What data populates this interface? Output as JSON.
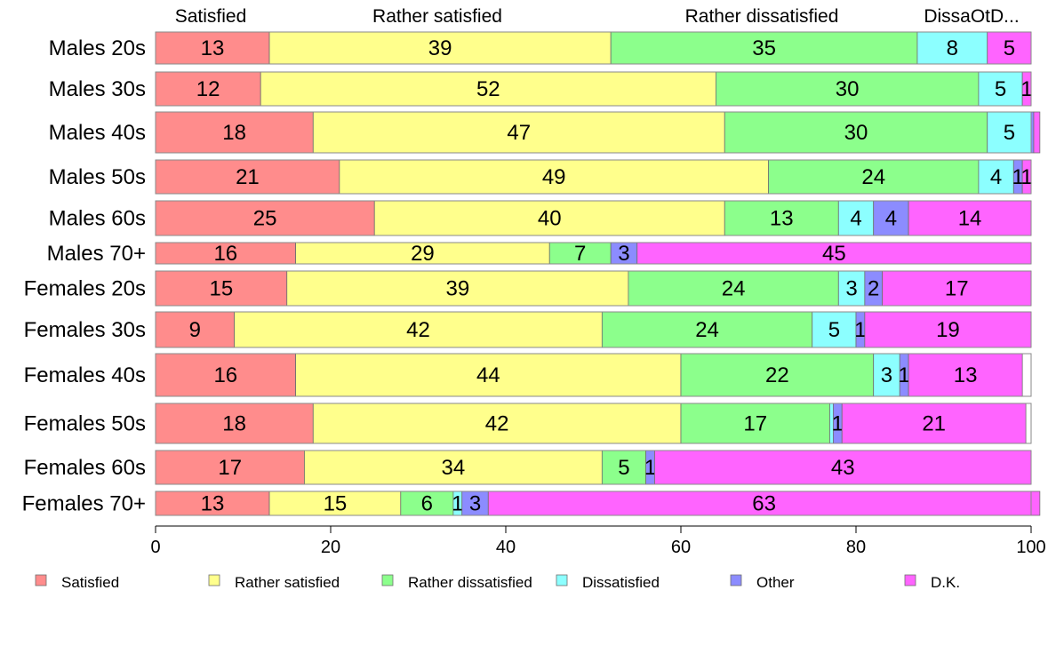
{
  "chart_data": {
    "type": "bar",
    "orientation": "horizontal",
    "stacked": true,
    "categories": [
      "Males 20s",
      "Males 30s",
      "Males 40s",
      "Males 50s",
      "Males 60s",
      "Males 70+",
      "Females 20s",
      "Females 30s",
      "Females 40s",
      "Females 50s",
      "Females 60s",
      "Females 70+"
    ],
    "series": [
      {
        "name": "Satisfied",
        "color": "#ff8c8c",
        "values": [
          13,
          12,
          18,
          21,
          25,
          16,
          15,
          9,
          16,
          18,
          17,
          13
        ]
      },
      {
        "name": "Rather satisfied",
        "color": "#ffff8c",
        "values": [
          39,
          52,
          47,
          49,
          40,
          29,
          39,
          42,
          44,
          42,
          34,
          15
        ]
      },
      {
        "name": "Rather dissatisfied",
        "color": "#8cff8c",
        "values": [
          35,
          30,
          30,
          24,
          13,
          7,
          24,
          24,
          22,
          17,
          5,
          6
        ]
      },
      {
        "name": "Dissatisfied",
        "color": "#8cffff",
        "values": [
          8,
          5,
          5,
          4,
          4,
          0,
          3,
          5,
          3,
          0.4,
          0,
          1
        ]
      },
      {
        "name": "Other",
        "color": "#8c8cff",
        "values": [
          0,
          0,
          0.3,
          1,
          4,
          3,
          2,
          1,
          1,
          1,
          1,
          3
        ]
      },
      {
        "name": "D.K.",
        "color": "#ff64ff",
        "values": [
          5,
          1,
          0.7,
          1,
          14,
          45,
          17,
          19,
          13,
          21,
          43,
          63
        ]
      }
    ],
    "segment_labels": [
      [
        "13",
        "39",
        "35",
        "8",
        "",
        "5"
      ],
      [
        "12",
        "52",
        "30",
        "5",
        "",
        "1"
      ],
      [
        "18",
        "47",
        "30",
        "5",
        "",
        ""
      ],
      [
        "21",
        "49",
        "24",
        "4",
        "1",
        "1"
      ],
      [
        "25",
        "40",
        "13",
        "4",
        "4",
        "14"
      ],
      [
        "16",
        "29",
        "7",
        "",
        "3",
        "45"
      ],
      [
        "15",
        "39",
        "24",
        "3",
        "2",
        "17"
      ],
      [
        "9",
        "42",
        "24",
        "5",
        "1",
        "19"
      ],
      [
        "16",
        "44",
        "22",
        "3",
        "1",
        "13"
      ],
      [
        "18",
        "42",
        "17",
        "",
        "1",
        "21"
      ],
      [
        "17",
        "34",
        "5",
        "",
        "1",
        "43"
      ],
      [
        "13",
        "15",
        "6",
        "1",
        "3",
        "63"
      ]
    ],
    "top_labels": [
      "Satisfied",
      "Rather satisfied",
      "Rather dissatisfied",
      "DissaOtD..."
    ],
    "xlim": [
      0,
      100
    ],
    "xticks": [
      "0",
      "20",
      "40",
      "60",
      "80",
      "100"
    ],
    "xlabel": "",
    "ylabel": "",
    "title": "",
    "grid": false,
    "legend_position": "bottom"
  }
}
